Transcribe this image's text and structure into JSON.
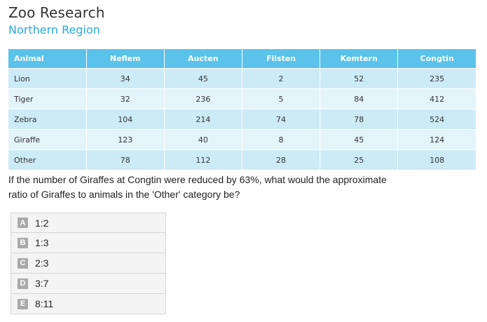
{
  "header": {
    "title": "Zoo Research",
    "subtitle": "Northern Region"
  },
  "table": {
    "columns": [
      "Animal",
      "Neflem",
      "Aucten",
      "Filsten",
      "Kemtern",
      "Congtin"
    ],
    "rows": [
      [
        "Lion",
        "34",
        "45",
        "2",
        "52",
        "235"
      ],
      [
        "Tiger",
        "32",
        "236",
        "5",
        "84",
        "412"
      ],
      [
        "Zebra",
        "104",
        "214",
        "74",
        "78",
        "524"
      ],
      [
        "Giraffe",
        "123",
        "40",
        "8",
        "45",
        "124"
      ],
      [
        "Other",
        "78",
        "112",
        "28",
        "25",
        "108"
      ]
    ]
  },
  "question": {
    "line1": "If the number of Giraffes at Congtin were reduced by 63%, what would the approximate",
    "line2": "ratio of Giraffes to animals in the 'Other' category be?"
  },
  "options": [
    {
      "letter": "A",
      "label": "1:2"
    },
    {
      "letter": "B",
      "label": "1:3"
    },
    {
      "letter": "C",
      "label": "2:3"
    },
    {
      "letter": "D",
      "label": "3:7"
    },
    {
      "letter": "E",
      "label": "8:11"
    }
  ],
  "colors": {
    "accent": "#29a8dc",
    "header_bg": "#5bc2e9",
    "row_odd": "#cdeaf7",
    "row_even": "#e3f4fb",
    "badge": "#a9a9a9"
  }
}
